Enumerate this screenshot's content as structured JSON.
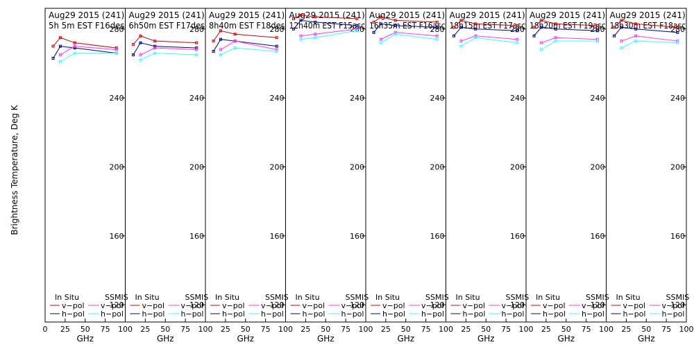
{
  "figure": {
    "ylabel": "Brightness Temperature, Deg K",
    "xlabel": "GHz",
    "legend": {
      "in_situ": "In Situ",
      "ssmis": "SSMIS",
      "vpol": "v−pol",
      "hpol": "h−pol"
    },
    "colors": {
      "insitu_v": "#cc0000",
      "insitu_h": "#000080",
      "ssmis_v": "#ff33ff",
      "ssmis_h": "#33ffff"
    }
  },
  "chart_data": [
    {
      "type": "line",
      "title": "Aug29 2015 (241)",
      "subtitle": "5h 5m  EST F16des",
      "xlabel": "GHz",
      "ylabel": "Brightness Temperature, Deg K",
      "x": [
        10,
        19,
        37,
        89
      ],
      "xticks": [
        0,
        25,
        50,
        75,
        100
      ],
      "yticks": [
        120,
        160,
        200,
        240,
        280
      ],
      "xlim": [
        0,
        100
      ],
      "ylim": [
        110,
        292
      ],
      "series": [
        {
          "name": "In Situ v-pol",
          "values": [
            270,
            275,
            272,
            269
          ]
        },
        {
          "name": "In Situ h-pol",
          "values": [
            263,
            270,
            269,
            266
          ]
        },
        {
          "name": "SSMIS v-pol",
          "values": [
            null,
            265,
            270,
            268
          ]
        },
        {
          "name": "SSMIS h-pol",
          "values": [
            null,
            261,
            266,
            266
          ]
        }
      ]
    },
    {
      "type": "line",
      "title": "Aug29 2015 (241)",
      "subtitle": "6h50m  EST F17des",
      "xlabel": "GHz",
      "ylabel": "Brightness Temperature, Deg K",
      "x": [
        10,
        19,
        37,
        89
      ],
      "xticks": [
        0,
        25,
        50,
        75,
        100
      ],
      "yticks": [
        120,
        160,
        200,
        240,
        280
      ],
      "xlim": [
        0,
        100
      ],
      "ylim": [
        110,
        292
      ],
      "series": [
        {
          "name": "In Situ v-pol",
          "values": [
            271,
            276,
            273,
            272
          ]
        },
        {
          "name": "In Situ h-pol",
          "values": [
            265,
            272,
            270,
            269
          ]
        },
        {
          "name": "SSMIS v-pol",
          "values": [
            null,
            265,
            269,
            268
          ]
        },
        {
          "name": "SSMIS h-pol",
          "values": [
            null,
            262,
            266,
            265
          ]
        }
      ]
    },
    {
      "type": "line",
      "title": "Aug29 2015 (241)",
      "subtitle": "8h40m  EST F18des",
      "xlabel": "GHz",
      "ylabel": "Brightness Temperature, Deg K",
      "x": [
        10,
        19,
        37,
        89
      ],
      "xticks": [
        0,
        25,
        50,
        75,
        100
      ],
      "yticks": [
        120,
        160,
        200,
        240,
        280
      ],
      "xlim": [
        0,
        100
      ],
      "ylim": [
        110,
        292
      ],
      "series": [
        {
          "name": "In Situ v-pol",
          "values": [
            273,
            279,
            277,
            275
          ]
        },
        {
          "name": "In Situ h-pol",
          "values": [
            267,
            274,
            273,
            270
          ]
        },
        {
          "name": "SSMIS v-pol",
          "values": [
            null,
            268,
            273,
            268
          ]
        },
        {
          "name": "SSMIS h-pol",
          "values": [
            null,
            265,
            269,
            267
          ]
        }
      ]
    },
    {
      "type": "line",
      "title": "Aug29 2015 (241)",
      "subtitle": "12h40m  EST F15asc",
      "xlabel": "GHz",
      "ylabel": "Brightness Temperature, Deg K",
      "x": [
        10,
        19,
        37,
        89
      ],
      "xticks": [
        0,
        25,
        50,
        75,
        100
      ],
      "yticks": [
        120,
        160,
        200,
        240,
        280
      ],
      "xlim": [
        0,
        100
      ],
      "ylim": [
        110,
        292
      ],
      "series": [
        {
          "name": "In Situ v-pol",
          "values": [
            286,
            288,
            287,
            286
          ]
        },
        {
          "name": "In Situ h-pol",
          "values": [
            280,
            285,
            284,
            282
          ]
        },
        {
          "name": "SSMIS v-pol",
          "values": [
            null,
            276,
            277,
            280
          ]
        },
        {
          "name": "SSMIS h-pol",
          "values": [
            null,
            274,
            275,
            279
          ]
        }
      ]
    },
    {
      "type": "line",
      "title": "Aug29 2015 (241)",
      "subtitle": "16h35m  EST F16asc",
      "xlabel": "GHz",
      "ylabel": "Brightness Temperature, Deg K",
      "x": [
        10,
        19,
        37,
        89
      ],
      "xticks": [
        0,
        25,
        50,
        75,
        100
      ],
      "yticks": [
        120,
        160,
        200,
        240,
        280
      ],
      "xlim": [
        0,
        100
      ],
      "ylim": [
        110,
        292
      ],
      "series": [
        {
          "name": "In Situ v-pol",
          "values": [
            284,
            287,
            285,
            284
          ]
        },
        {
          "name": "In Situ h-pol",
          "values": [
            278,
            283,
            282,
            281
          ]
        },
        {
          "name": "SSMIS v-pol",
          "values": [
            null,
            274,
            278,
            276
          ]
        },
        {
          "name": "SSMIS h-pol",
          "values": [
            null,
            272,
            277,
            274
          ]
        }
      ]
    },
    {
      "type": "line",
      "title": "Aug29 2015 (241)",
      "subtitle": "18h15m  EST F17asc",
      "xlabel": "GHz",
      "ylabel": "Brightness Temperature, Deg K",
      "x": [
        10,
        19,
        37,
        89
      ],
      "xticks": [
        0,
        25,
        50,
        75,
        100
      ],
      "yticks": [
        120,
        160,
        200,
        240,
        280
      ],
      "xlim": [
        0,
        100
      ],
      "ylim": [
        110,
        292
      ],
      "series": [
        {
          "name": "In Situ v-pol",
          "values": [
            281,
            285,
            283,
            282
          ]
        },
        {
          "name": "In Situ h-pol",
          "values": [
            276,
            281,
            280,
            279
          ]
        },
        {
          "name": "SSMIS v-pol",
          "values": [
            null,
            273,
            276,
            274
          ]
        },
        {
          "name": "SSMIS h-pol",
          "values": [
            null,
            270,
            275,
            272
          ]
        }
      ]
    },
    {
      "type": "line",
      "title": "Aug29 2015 (241)",
      "subtitle": "18h20m  EST F19asc",
      "xlabel": "GHz",
      "ylabel": "Brightness Temperature, Deg K",
      "x": [
        10,
        19,
        37,
        89
      ],
      "xticks": [
        0,
        25,
        50,
        75,
        100
      ],
      "yticks": [
        120,
        160,
        200,
        240,
        280
      ],
      "xlim": [
        0,
        100
      ],
      "ylim": [
        110,
        292
      ],
      "series": [
        {
          "name": "In Situ v-pol",
          "values": [
            281,
            285,
            283,
            282
          ]
        },
        {
          "name": "In Situ h-pol",
          "values": [
            276,
            281,
            280,
            279
          ]
        },
        {
          "name": "SSMIS v-pol",
          "values": [
            null,
            272,
            275,
            274
          ]
        },
        {
          "name": "SSMIS h-pol",
          "values": [
            null,
            268,
            273,
            273
          ]
        }
      ]
    },
    {
      "type": "line",
      "title": "Aug29 2015 (241)",
      "subtitle": "18h30m  EST F18asc",
      "xlabel": "GHz",
      "ylabel": "Brightness Temperature, Deg K",
      "x": [
        10,
        19,
        37,
        89
      ],
      "xticks": [
        0,
        25,
        50,
        75,
        100
      ],
      "yticks": [
        120,
        160,
        200,
        240,
        280
      ],
      "xlim": [
        0,
        100
      ],
      "ylim": [
        110,
        292
      ],
      "series": [
        {
          "name": "In Situ v-pol",
          "values": [
            281,
            285,
            283,
            281
          ]
        },
        {
          "name": "In Situ h-pol",
          "values": [
            276,
            281,
            280,
            278
          ]
        },
        {
          "name": "SSMIS v-pol",
          "values": [
            null,
            273,
            276,
            273
          ]
        },
        {
          "name": "SSMIS h-pol",
          "values": [
            null,
            269,
            273,
            272
          ]
        }
      ]
    }
  ]
}
